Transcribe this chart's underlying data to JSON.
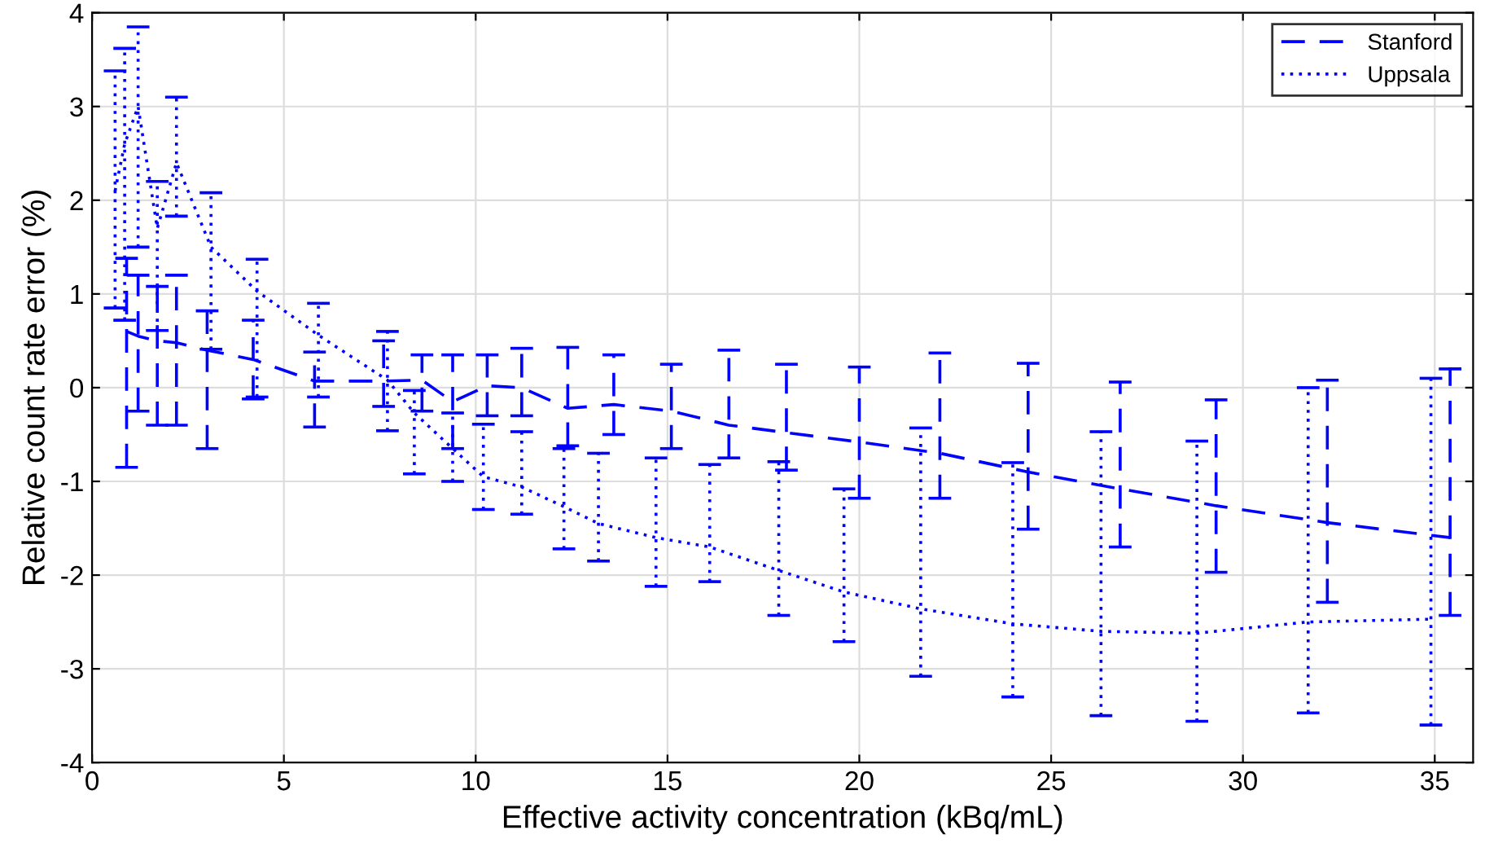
{
  "chart_data": {
    "type": "line",
    "xlabel": "Effective activity concentration (kBq/mL)",
    "ylabel": "Relative count rate error (%)",
    "xlim": [
      0,
      36
    ],
    "xticks": [
      0,
      5,
      10,
      15,
      20,
      25,
      30,
      35
    ],
    "ylim": [
      -4,
      4
    ],
    "yticks": [
      -4,
      -3,
      -2,
      -1,
      0,
      1,
      2,
      3,
      4
    ],
    "grid": true,
    "legend": "top right",
    "marker": "none",
    "series": [
      {
        "name": "Stanford",
        "color": "#0000ff",
        "line_style": "dashed",
        "x": [
          0.9,
          1.2,
          1.7,
          2.2,
          3.0,
          4.2,
          5.8,
          7.6,
          8.6,
          9.4,
          10.3,
          11.2,
          12.4,
          13.6,
          15.1,
          16.6,
          18.1,
          20.0,
          22.1,
          24.4,
          26.8,
          29.3,
          32.2,
          35.4
        ],
        "values": [
          0.6,
          0.55,
          0.5,
          0.48,
          0.4,
          0.3,
          0.07,
          0.07,
          0.08,
          -0.15,
          0.02,
          0,
          -0.22,
          -0.18,
          -0.25,
          -0.4,
          -0.48,
          -0.58,
          -0.7,
          -0.9,
          -1.08,
          -1.26,
          -1.44,
          -1.6
        ],
        "errors": [
          [
            -0.85,
            1.38
          ],
          [
            -0.25,
            1.2
          ],
          [
            -0.4,
            1.08
          ],
          [
            -0.4,
            1.2
          ],
          [
            -0.65,
            0.82
          ],
          [
            -0.12,
            0.72
          ],
          [
            -0.42,
            0.38
          ],
          [
            -0.2,
            0.5
          ],
          [
            -0.25,
            0.35
          ],
          [
            -0.65,
            0.35
          ],
          [
            -0.3,
            0.35
          ],
          [
            -0.3,
            0.42
          ],
          [
            -0.62,
            0.43
          ],
          [
            -0.5,
            0.35
          ],
          [
            -0.65,
            0.25
          ],
          [
            -0.75,
            0.4
          ],
          [
            -0.88,
            0.25
          ],
          [
            -1.18,
            0.22
          ],
          [
            -1.18,
            0.37
          ],
          [
            -1.51,
            0.26
          ],
          [
            -1.7,
            0.06
          ],
          [
            -1.97,
            -0.13
          ],
          [
            -2.29,
            0.08
          ],
          [
            -2.43,
            0.2
          ]
        ]
      },
      {
        "name": "Uppsala",
        "color": "#0000ff",
        "line_style": "dotted",
        "x": [
          0.6,
          0.85,
          1.2,
          1.7,
          2.2,
          3.1,
          4.3,
          5.9,
          7.7,
          8.4,
          9.4,
          10.2,
          11.2,
          12.3,
          13.2,
          14.7,
          16.1,
          17.9,
          19.6,
          21.6,
          24.0,
          26.3,
          28.8,
          31.7,
          34.9
        ],
        "values": [
          2.1,
          2.6,
          3.0,
          1.7,
          2.4,
          1.5,
          1.03,
          0.56,
          0.08,
          -0.27,
          -0.65,
          -0.95,
          -1.06,
          -1.27,
          -1.45,
          -1.6,
          -1.7,
          -1.95,
          -2.18,
          -2.36,
          -2.52,
          -2.6,
          -2.62,
          -2.5,
          -2.47
        ],
        "errors": [
          [
            0.85,
            3.38
          ],
          [
            0.72,
            3.62
          ],
          [
            1.5,
            3.85
          ],
          [
            0.61,
            2.2
          ],
          [
            1.83,
            3.1
          ],
          [
            0.41,
            2.08
          ],
          [
            -0.1,
            1.37
          ],
          [
            -0.1,
            0.9
          ],
          [
            -0.46,
            0.6
          ],
          [
            -0.92,
            -0.03
          ],
          [
            -1.0,
            -0.27
          ],
          [
            -1.3,
            -0.39
          ],
          [
            -1.35,
            -0.47
          ],
          [
            -1.72,
            -0.65
          ],
          [
            -1.85,
            -0.7
          ],
          [
            -2.12,
            -0.75
          ],
          [
            -2.07,
            -0.82
          ],
          [
            -2.43,
            -0.79
          ],
          [
            -2.71,
            -1.08
          ],
          [
            -3.08,
            -0.43
          ],
          [
            -3.3,
            -0.8
          ],
          [
            -3.5,
            -0.47
          ],
          [
            -3.56,
            -0.57
          ],
          [
            -3.47,
            0.0
          ],
          [
            -3.6,
            0.1
          ]
        ]
      }
    ]
  }
}
